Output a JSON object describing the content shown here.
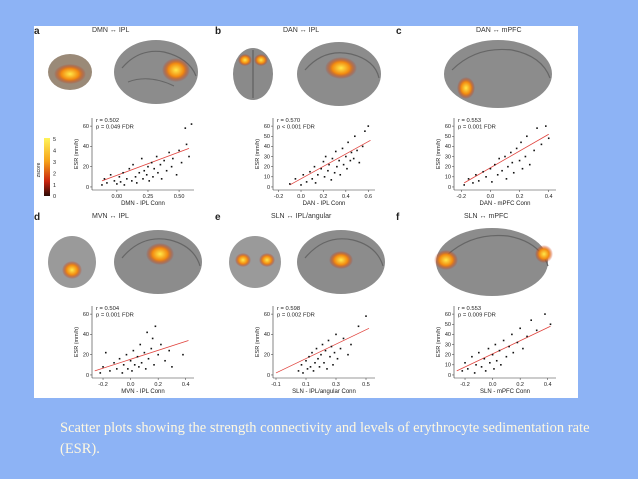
{
  "caption": "Scatter plots showing the strength connectivity and levels of erythrocyte sedimentation rate (ESR).",
  "colorbar": {
    "label": "zscore",
    "ticks": [
      "5",
      "4",
      "3",
      "2",
      "1",
      "0"
    ]
  },
  "colors": {
    "slide_background": "#8db3f5",
    "caption_text": "#fff8e0",
    "fit_line": "#e0413b",
    "points": "#111111"
  },
  "chart_data": [
    {
      "panel": "a",
      "title": "DMN ↔ IPL",
      "type": "scatter",
      "xlabel": "DMN - IPL Conn",
      "ylabel": "ESR (mm/h)",
      "stats": [
        "r = 0.502",
        "p = 0.049 FDR"
      ],
      "xlim": [
        -0.2,
        0.62
      ],
      "ylim": [
        -3,
        68
      ],
      "xticks": [
        0.0,
        0.25,
        0.5
      ],
      "xtick_labels": [
        "0.00",
        "0.25",
        "0.50"
      ],
      "yticks": [
        0,
        20,
        40,
        60
      ],
      "ytick_labels": [
        "0",
        "20",
        "40",
        "60"
      ],
      "fit": [
        [
          -0.12,
          6
        ],
        [
          0.58,
          38
        ]
      ],
      "points": [
        [
          -0.12,
          2
        ],
        [
          -0.1,
          8
        ],
        [
          -0.08,
          4
        ],
        [
          -0.05,
          12
        ],
        [
          -0.02,
          6
        ],
        [
          0.0,
          3
        ],
        [
          0.02,
          10
        ],
        [
          0.03,
          5
        ],
        [
          0.05,
          14
        ],
        [
          0.06,
          2
        ],
        [
          0.08,
          8
        ],
        [
          0.1,
          18
        ],
        [
          0.12,
          6
        ],
        [
          0.13,
          22
        ],
        [
          0.15,
          10
        ],
        [
          0.16,
          4
        ],
        [
          0.18,
          14
        ],
        [
          0.2,
          28
        ],
        [
          0.21,
          8
        ],
        [
          0.22,
          16
        ],
        [
          0.24,
          12
        ],
        [
          0.25,
          20
        ],
        [
          0.26,
          6
        ],
        [
          0.28,
          24
        ],
        [
          0.29,
          10
        ],
        [
          0.3,
          18
        ],
        [
          0.32,
          30
        ],
        [
          0.33,
          14
        ],
        [
          0.35,
          22
        ],
        [
          0.36,
          8
        ],
        [
          0.38,
          26
        ],
        [
          0.4,
          16
        ],
        [
          0.42,
          34
        ],
        [
          0.44,
          20
        ],
        [
          0.45,
          28
        ],
        [
          0.48,
          12
        ],
        [
          0.5,
          36
        ],
        [
          0.52,
          24
        ],
        [
          0.55,
          58
        ],
        [
          0.56,
          42
        ],
        [
          0.58,
          30
        ],
        [
          0.6,
          62
        ]
      ]
    },
    {
      "panel": "b",
      "title": "DAN ↔ IPL",
      "type": "scatter",
      "xlabel": "DAN - IPL Conn",
      "ylabel": "ESR (mm/h)",
      "stats": [
        "r = 0.570",
        "p < 0.001 FDR"
      ],
      "xlim": [
        -0.25,
        0.66
      ],
      "ylim": [
        -3,
        68
      ],
      "xticks": [
        -0.2,
        0.0,
        0.2,
        0.4,
        0.6
      ],
      "xtick_labels": [
        "-0.2",
        "0.0",
        "0.2",
        "0.4",
        "0.6"
      ],
      "yticks": [
        0,
        10,
        20,
        30,
        40,
        50,
        60
      ],
      "ytick_labels": [
        "0",
        "10",
        "20",
        "30",
        "40",
        "50",
        "60"
      ],
      "fit": [
        [
          -0.1,
          2
        ],
        [
          0.62,
          46
        ]
      ],
      "points": [
        [
          -0.1,
          3
        ],
        [
          -0.05,
          8
        ],
        [
          0.0,
          2
        ],
        [
          0.02,
          12
        ],
        [
          0.05,
          5
        ],
        [
          0.08,
          15
        ],
        [
          0.1,
          8
        ],
        [
          0.12,
          20
        ],
        [
          0.13,
          4
        ],
        [
          0.15,
          12
        ],
        [
          0.18,
          18
        ],
        [
          0.2,
          25
        ],
        [
          0.21,
          10
        ],
        [
          0.22,
          30
        ],
        [
          0.24,
          16
        ],
        [
          0.25,
          22
        ],
        [
          0.27,
          7
        ],
        [
          0.28,
          28
        ],
        [
          0.3,
          14
        ],
        [
          0.31,
          35
        ],
        [
          0.32,
          20
        ],
        [
          0.34,
          26
        ],
        [
          0.35,
          12
        ],
        [
          0.37,
          38
        ],
        [
          0.38,
          22
        ],
        [
          0.4,
          30
        ],
        [
          0.41,
          18
        ],
        [
          0.42,
          44
        ],
        [
          0.44,
          26
        ],
        [
          0.45,
          34
        ],
        [
          0.47,
          28
        ],
        [
          0.48,
          50
        ],
        [
          0.5,
          36
        ],
        [
          0.52,
          24
        ],
        [
          0.55,
          40
        ],
        [
          0.57,
          55
        ],
        [
          0.6,
          60
        ]
      ]
    },
    {
      "panel": "c",
      "title": "DAN ↔ mPFC",
      "type": "scatter",
      "xlabel": "DAN - mPFC Conn",
      "ylabel": "ESR (mm/h)",
      "stats": [
        "r = 0.553",
        "p = 0.001 FDR"
      ],
      "xlim": [
        -0.25,
        0.45
      ],
      "ylim": [
        -3,
        68
      ],
      "xticks": [
        -0.2,
        0.0,
        0.2,
        0.4
      ],
      "xtick_labels": [
        "-0.2",
        "0.0",
        "0.2",
        "0.4"
      ],
      "yticks": [
        0,
        10,
        20,
        30,
        40,
        50,
        60
      ],
      "ytick_labels": [
        "0",
        "10",
        "20",
        "30",
        "40",
        "50",
        "60"
      ],
      "fit": [
        [
          -0.18,
          4
        ],
        [
          0.4,
          52
        ]
      ],
      "points": [
        [
          -0.18,
          2
        ],
        [
          -0.15,
          8
        ],
        [
          -0.12,
          4
        ],
        [
          -0.1,
          12
        ],
        [
          -0.08,
          6
        ],
        [
          -0.05,
          15
        ],
        [
          -0.03,
          10
        ],
        [
          0.0,
          18
        ],
        [
          0.01,
          5
        ],
        [
          0.03,
          22
        ],
        [
          0.05,
          12
        ],
        [
          0.06,
          28
        ],
        [
          0.08,
          16
        ],
        [
          0.1,
          30
        ],
        [
          0.11,
          8
        ],
        [
          0.12,
          20
        ],
        [
          0.14,
          34
        ],
        [
          0.15,
          24
        ],
        [
          0.16,
          14
        ],
        [
          0.18,
          38
        ],
        [
          0.2,
          26
        ],
        [
          0.21,
          44
        ],
        [
          0.22,
          18
        ],
        [
          0.24,
          30
        ],
        [
          0.25,
          50
        ],
        [
          0.27,
          22
        ],
        [
          0.3,
          36
        ],
        [
          0.32,
          58
        ],
        [
          0.35,
          42
        ],
        [
          0.38,
          60
        ],
        [
          0.4,
          48
        ]
      ]
    },
    {
      "panel": "d",
      "title": "MVN ↔ IPL",
      "type": "scatter",
      "xlabel": "MVN - IPL Conn",
      "ylabel": "ESR (mm/h)",
      "stats": [
        "r = 0.504",
        "p = 0.001 FDR"
      ],
      "xlim": [
        -0.28,
        0.46
      ],
      "ylim": [
        -3,
        68
      ],
      "xticks": [
        -0.2,
        0.0,
        0.2,
        0.4
      ],
      "xtick_labels": [
        "-0.2",
        "0.0",
        "0.2",
        "0.4"
      ],
      "yticks": [
        0,
        20,
        40,
        60
      ],
      "ytick_labels": [
        "0",
        "20",
        "40",
        "60"
      ],
      "fit": [
        [
          -0.26,
          4
        ],
        [
          0.42,
          34
        ]
      ],
      "points": [
        [
          -0.22,
          2
        ],
        [
          -0.2,
          8
        ],
        [
          -0.18,
          22
        ],
        [
          -0.15,
          4
        ],
        [
          -0.12,
          12
        ],
        [
          -0.1,
          6
        ],
        [
          -0.08,
          16
        ],
        [
          -0.06,
          2
        ],
        [
          -0.05,
          10
        ],
        [
          -0.03,
          20
        ],
        [
          -0.02,
          6
        ],
        [
          0.0,
          14
        ],
        [
          0.01,
          4
        ],
        [
          0.02,
          24
        ],
        [
          0.03,
          10
        ],
        [
          0.05,
          18
        ],
        [
          0.06,
          8
        ],
        [
          0.07,
          30
        ],
        [
          0.08,
          12
        ],
        [
          0.1,
          22
        ],
        [
          0.11,
          6
        ],
        [
          0.12,
          42
        ],
        [
          0.13,
          16
        ],
        [
          0.15,
          26
        ],
        [
          0.16,
          36
        ],
        [
          0.17,
          10
        ],
        [
          0.18,
          48
        ],
        [
          0.2,
          20
        ],
        [
          0.22,
          30
        ],
        [
          0.25,
          14
        ],
        [
          0.28,
          24
        ],
        [
          0.3,
          8
        ],
        [
          0.38,
          20
        ]
      ]
    },
    {
      "panel": "e",
      "title": "SLN ↔ IPL/angular",
      "type": "scatter",
      "xlabel": "SLN - IPL/angular Conn",
      "ylabel": "ESR (mm/h)",
      "stats": [
        "r = 0.598",
        "p = 0.002 FDR"
      ],
      "xlim": [
        -0.12,
        0.56
      ],
      "ylim": [
        -3,
        68
      ],
      "xticks": [
        -0.1,
        0.1,
        0.3,
        0.5
      ],
      "xtick_labels": [
        "-0.1",
        "0.1",
        "0.3",
        "0.5"
      ],
      "yticks": [
        0,
        20,
        40,
        60
      ],
      "ytick_labels": [
        "0",
        "20",
        "40",
        "60"
      ],
      "fit": [
        [
          -0.1,
          2
        ],
        [
          0.52,
          46
        ]
      ],
      "points": [
        [
          0.05,
          4
        ],
        [
          0.07,
          10
        ],
        [
          0.08,
          2
        ],
        [
          0.1,
          14
        ],
        [
          0.11,
          6
        ],
        [
          0.12,
          18
        ],
        [
          0.13,
          8
        ],
        [
          0.14,
          22
        ],
        [
          0.15,
          4
        ],
        [
          0.16,
          12
        ],
        [
          0.17,
          26
        ],
        [
          0.18,
          16
        ],
        [
          0.19,
          8
        ],
        [
          0.2,
          20
        ],
        [
          0.21,
          30
        ],
        [
          0.22,
          12
        ],
        [
          0.23,
          24
        ],
        [
          0.24,
          6
        ],
        [
          0.25,
          34
        ],
        [
          0.26,
          18
        ],
        [
          0.27,
          28
        ],
        [
          0.28,
          10
        ],
        [
          0.29,
          22
        ],
        [
          0.3,
          40
        ],
        [
          0.31,
          16
        ],
        [
          0.33,
          26
        ],
        [
          0.35,
          36
        ],
        [
          0.38,
          20
        ],
        [
          0.4,
          30
        ],
        [
          0.45,
          48
        ],
        [
          0.5,
          58
        ]
      ]
    },
    {
      "panel": "f",
      "title": "SLN ↔ mPFC",
      "type": "scatter",
      "xlabel": "SLN - mPFC Conn",
      "ylabel": "ESR (mm/h)",
      "stats": [
        "r = 0.553",
        "p = 0.009 FDR"
      ],
      "xlim": [
        -0.28,
        0.46
      ],
      "ylim": [
        -3,
        68
      ],
      "xticks": [
        -0.2,
        0.0,
        0.2,
        0.4
      ],
      "xtick_labels": [
        "-0.2",
        "0.0",
        "0.2",
        "0.4"
      ],
      "yticks": [
        0,
        10,
        20,
        30,
        40,
        50,
        60
      ],
      "ytick_labels": [
        "0",
        "10",
        "20",
        "30",
        "40",
        "50",
        "60"
      ],
      "fit": [
        [
          -0.26,
          4
        ],
        [
          0.42,
          48
        ]
      ],
      "points": [
        [
          -0.22,
          4
        ],
        [
          -0.2,
          12
        ],
        [
          -0.18,
          6
        ],
        [
          -0.15,
          18
        ],
        [
          -0.13,
          2
        ],
        [
          -0.12,
          10
        ],
        [
          -0.1,
          22
        ],
        [
          -0.08,
          8
        ],
        [
          -0.06,
          16
        ],
        [
          -0.05,
          4
        ],
        [
          -0.03,
          26
        ],
        [
          -0.02,
          12
        ],
        [
          0.0,
          20
        ],
        [
          0.01,
          6
        ],
        [
          0.02,
          30
        ],
        [
          0.03,
          14
        ],
        [
          0.05,
          24
        ],
        [
          0.06,
          10
        ],
        [
          0.08,
          34
        ],
        [
          0.1,
          18
        ],
        [
          0.12,
          28
        ],
        [
          0.14,
          40
        ],
        [
          0.15,
          22
        ],
        [
          0.18,
          32
        ],
        [
          0.2,
          46
        ],
        [
          0.22,
          26
        ],
        [
          0.25,
          38
        ],
        [
          0.28,
          54
        ],
        [
          0.32,
          44
        ],
        [
          0.38,
          60
        ],
        [
          0.42,
          50
        ]
      ]
    }
  ]
}
